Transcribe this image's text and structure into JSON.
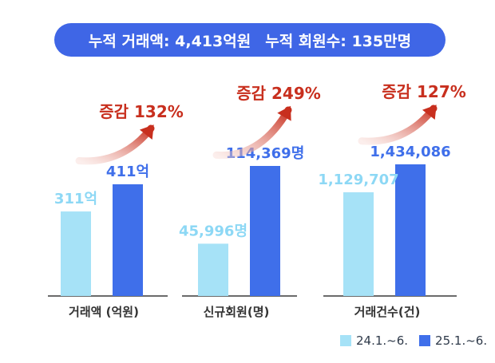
{
  "banner": {
    "total_amount": "누적 거래액: 4,413억원",
    "total_members": "누적 회원수: 135만명"
  },
  "colors": {
    "series_2024": "#a6e2f7",
    "series_2025": "#3f6fea",
    "label_2024": "#8dd8f5",
    "label_2025": "#3f6fea",
    "growth": "#c82f1e",
    "axis": "#3a3a3a",
    "banner_bg": "#3f66e6"
  },
  "legend": [
    {
      "label": "24.1.~6.",
      "color": "#a6e2f7"
    },
    {
      "label": "25.1.~6.",
      "color": "#3f6fea"
    }
  ],
  "chart_data": {
    "type": "bar",
    "note": "Each category is drawn on its own independent scale.",
    "categories": [
      "거래액 (억원)",
      "신규회원(명)",
      "거래건수(건)"
    ],
    "series": [
      {
        "name": "24.1.~6.",
        "values": [
          311,
          45996,
          1129707
        ]
      },
      {
        "name": "25.1.~6.",
        "values": [
          411,
          114369,
          1434086
        ]
      }
    ],
    "value_labels": [
      [
        "311억",
        "411억"
      ],
      [
        "45,996명",
        "114,369명"
      ],
      [
        "1,129,707",
        "1,434,086"
      ]
    ],
    "growth_labels": [
      "증감 132%",
      "증감 249%",
      "증감 127%"
    ],
    "legend_position": "bottom-right"
  }
}
